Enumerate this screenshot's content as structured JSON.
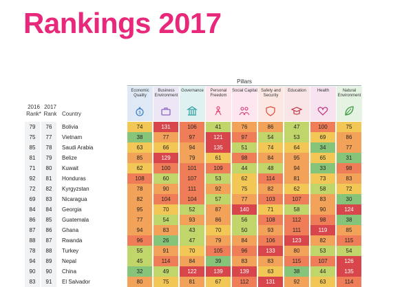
{
  "page": {
    "title": "Rankings 2017"
  },
  "header": {
    "pillars_title": "Pillars",
    "rank2016_label": [
      "2016",
      "Rank*"
    ],
    "rank2017_label": [
      "2017",
      "Rank"
    ],
    "country_label": "Country"
  },
  "pillars": [
    {
      "label": [
        "Economic",
        "Quality"
      ],
      "bg": "#dfe9f6",
      "icon": "money-bag-icon",
      "icon_color": "#3c7fc9"
    },
    {
      "label": [
        "Business",
        "Environment"
      ],
      "bg": "#ece6f5",
      "icon": "briefcase-icon",
      "icon_color": "#8a64c2"
    },
    {
      "label": [
        "Governance"
      ],
      "bg": "#e0f1f1",
      "icon": "government-building-icon",
      "icon_color": "#2a9f9f"
    },
    {
      "label": [
        "Personal",
        "Freedom"
      ],
      "bg": "#fde6ec",
      "icon": "person-icon",
      "icon_color": "#e0487a"
    },
    {
      "label": [
        "Social Capital"
      ],
      "bg": "#fde6ef",
      "icon": "people-icon",
      "icon_color": "#d64a86"
    },
    {
      "label": [
        "Safety and",
        "Security"
      ],
      "bg": "#fde7e3",
      "icon": "shield-icon",
      "icon_color": "#e0503e"
    },
    {
      "label": [
        "Education"
      ],
      "bg": "#f9e4e6",
      "icon": "graduation-cap-icon",
      "icon_color": "#c0303f"
    },
    {
      "label": [
        "Health"
      ],
      "bg": "#f7e3ef",
      "icon": "heart-icon",
      "icon_color": "#c23b85"
    },
    {
      "label": [
        "Natural",
        "Environment"
      ],
      "bg": "#e4f3e2",
      "icon": "leaf-icon",
      "icon_color": "#3f9a3f"
    }
  ],
  "chart_data": {
    "type": "table",
    "title": "Rankings 2017",
    "columns": [
      "2016 Rank*",
      "2017 Rank",
      "Country",
      "Economic Quality",
      "Business Environment",
      "Governance",
      "Personal Freedom",
      "Social Capital",
      "Safety and Security",
      "Education",
      "Health",
      "Natural Environment"
    ],
    "rows": [
      {
        "rank2016": "79",
        "rank2017": "76",
        "country": "Bolivia",
        "scores": [
          74,
          131,
          106,
          41,
          76,
          86,
          47,
          100,
          75
        ]
      },
      {
        "rank2016": "75",
        "rank2017": "77",
        "country": "Vietnam",
        "scores": [
          38,
          77,
          97,
          121,
          97,
          54,
          53,
          69,
          86
        ]
      },
      {
        "rank2016": "85",
        "rank2017": "78",
        "country": "Saudi Arabia",
        "scores": [
          63,
          66,
          94,
          135,
          51,
          74,
          64,
          34,
          77
        ]
      },
      {
        "rank2016": "81",
        "rank2017": "79",
        "country": "Belize",
        "scores": [
          85,
          129,
          79,
          61,
          98,
          84,
          95,
          65,
          31
        ]
      },
      {
        "rank2016": "71",
        "rank2017": "80",
        "country": "Kuwait",
        "scores": [
          62,
          100,
          101,
          109,
          44,
          48,
          94,
          33,
          98
        ]
      },
      {
        "rank2016": "92",
        "rank2017": "81",
        "country": "Honduras",
        "scores": [
          108,
          60,
          107,
          53,
          62,
          114,
          81,
          73,
          83
        ]
      },
      {
        "rank2016": "72",
        "rank2017": "82",
        "country": "Kyrgyzstan",
        "scores": [
          78,
          90,
          111,
          92,
          75,
          82,
          62,
          58,
          72
        ]
      },
      {
        "rank2016": "69",
        "rank2017": "83",
        "country": "Nicaragua",
        "scores": [
          82,
          104,
          104,
          57,
          77,
          103,
          107,
          83,
          30
        ]
      },
      {
        "rank2016": "84",
        "rank2017": "84",
        "country": "Georgia",
        "scores": [
          95,
          70,
          52,
          87,
          140,
          71,
          58,
          90,
          124
        ]
      },
      {
        "rank2016": "86",
        "rank2017": "85",
        "country": "Guatemala",
        "scores": [
          77,
          54,
          93,
          86,
          56,
          108,
          112,
          98,
          38
        ]
      },
      {
        "rank2016": "87",
        "rank2017": "86",
        "country": "Ghana",
        "scores": [
          94,
          83,
          43,
          70,
          50,
          93,
          111,
          119,
          85
        ]
      },
      {
        "rank2016": "88",
        "rank2017": "87",
        "country": "Rwanda",
        "scores": [
          96,
          26,
          47,
          79,
          84,
          106,
          123,
          82,
          115
        ]
      },
      {
        "rank2016": "78",
        "rank2017": "88",
        "country": "Turkey",
        "scores": [
          55,
          91,
          70,
          105,
          96,
          133,
          80,
          53,
          54
        ]
      },
      {
        "rank2016": "94",
        "rank2017": "89",
        "country": "Nepal",
        "scores": [
          45,
          114,
          84,
          39,
          83,
          83,
          115,
          107,
          126
        ]
      },
      {
        "rank2016": "90",
        "rank2017": "90",
        "country": "China",
        "scores": [
          32,
          49,
          122,
          139,
          139,
          63,
          38,
          44,
          135
        ]
      },
      {
        "rank2016": "83",
        "rank2017": "91",
        "country": "El Salvador",
        "scores": [
          80,
          75,
          81,
          67,
          112,
          131,
          92,
          63,
          114
        ]
      }
    ]
  },
  "colors": {
    "title": "#e8287a",
    "scale": [
      "#86c47a",
      "#c0d56a",
      "#f3c755",
      "#f3a25a",
      "#ee7d58",
      "#d8464b"
    ]
  }
}
